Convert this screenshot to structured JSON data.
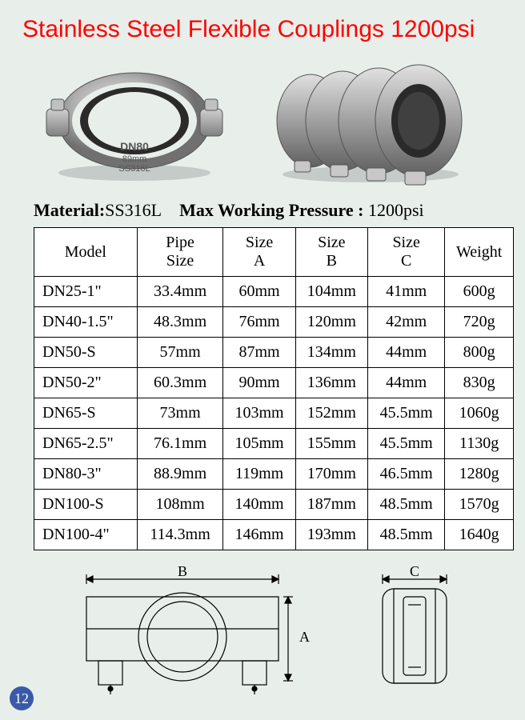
{
  "title": "Stainless Steel Flexible Couplings 1200psi",
  "material_label": "Material:",
  "material_value": "SS316L",
  "pressure_label": "Max Working Pressure :",
  "pressure_value": "1200psi",
  "photo_marking_line1": "DN80",
  "photo_marking_line2": "89mm",
  "photo_marking_line3": "SS316L",
  "table": {
    "headers": [
      "Model",
      "Pipe\nSize",
      "Size\nA",
      "Size\nB",
      "Size\nC",
      "Weight"
    ],
    "rows": [
      [
        "DN25-1\"",
        "33.4mm",
        "60mm",
        "104mm",
        "41mm",
        "600g"
      ],
      [
        "DN40-1.5\"",
        "48.3mm",
        "76mm",
        "120mm",
        "42mm",
        "720g"
      ],
      [
        "DN50-S",
        "57mm",
        "87mm",
        "134mm",
        "44mm",
        "800g"
      ],
      [
        "DN50-2\"",
        "60.3mm",
        "90mm",
        "136mm",
        "44mm",
        "830g"
      ],
      [
        "DN65-S",
        "73mm",
        "103mm",
        "152mm",
        "45.5mm",
        "1060g"
      ],
      [
        "DN65-2.5\"",
        "76.1mm",
        "105mm",
        "155mm",
        "45.5mm",
        "1130g"
      ],
      [
        "DN80-3\"",
        "88.9mm",
        "119mm",
        "170mm",
        "46.5mm",
        "1280g"
      ],
      [
        "DN100-S",
        "108mm",
        "140mm",
        "187mm",
        "48.5mm",
        "1570g"
      ],
      [
        "DN100-4\"",
        "114.3mm",
        "146mm",
        "193mm",
        "48.5mm",
        "1640g"
      ]
    ]
  },
  "diagram_labels": {
    "A": "A",
    "B": "B",
    "C": "C"
  },
  "page_number": "12",
  "colors": {
    "background": "#e8efeb",
    "title": "#ff0000",
    "text": "#000000",
    "table_bg": "#ffffff",
    "table_border": "#000000",
    "page_badge_bg": "#3a5aa8",
    "page_badge_text": "#ffffff",
    "metal_light": "#d8d8d8",
    "metal_mid": "#a8a8a8",
    "metal_dark": "#6a6a6a",
    "gasket": "#2a2a2a"
  }
}
